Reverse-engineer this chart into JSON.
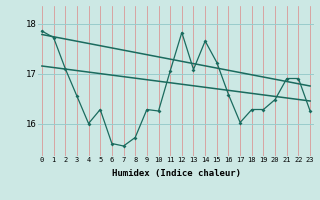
{
  "title": "",
  "xlabel": "Humidex (Indice chaleur)",
  "background_color": "#cce8e4",
  "plot_bg_color": "#cce8e4",
  "line_color": "#1a6b5e",
  "grid_color_v": "#dd8888",
  "grid_color_h": "#99cccc",
  "x_ticks": [
    0,
    1,
    2,
    3,
    4,
    5,
    6,
    7,
    8,
    9,
    10,
    11,
    12,
    13,
    14,
    15,
    16,
    17,
    18,
    19,
    20,
    21,
    22,
    23
  ],
  "y_ticks": [
    16,
    17,
    18
  ],
  "ylim": [
    15.35,
    18.35
  ],
  "xlim": [
    -0.3,
    23.3
  ],
  "zigzag_x": [
    0,
    1,
    2,
    3,
    4,
    5,
    6,
    7,
    8,
    9,
    10,
    11,
    12,
    13,
    14,
    15,
    16,
    17,
    18,
    19,
    20,
    21,
    22,
    23
  ],
  "zigzag_y": [
    17.85,
    17.72,
    17.1,
    16.55,
    16.0,
    16.28,
    15.6,
    15.55,
    15.72,
    16.28,
    16.25,
    17.05,
    17.82,
    17.08,
    17.65,
    17.22,
    16.58,
    16.02,
    16.28,
    16.28,
    16.48,
    16.9,
    16.9,
    16.25
  ],
  "trend1_x": [
    0,
    23
  ],
  "trend1_y": [
    17.78,
    16.75
  ],
  "trend2_x": [
    0,
    23
  ],
  "trend2_y": [
    17.15,
    16.45
  ]
}
